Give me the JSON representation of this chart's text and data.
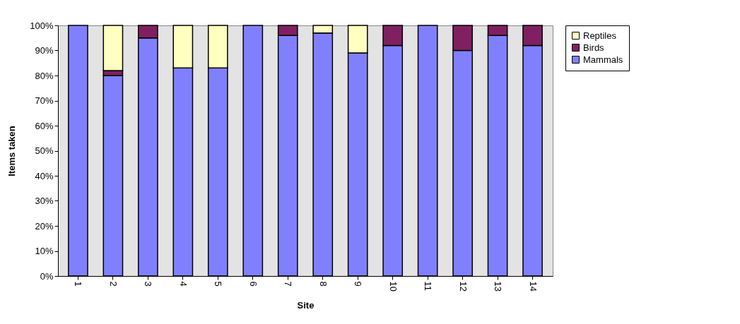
{
  "chart_data": {
    "type": "bar",
    "stacked": true,
    "xlabel": "Site",
    "ylabel": "Items taken",
    "categories": [
      "1",
      "2",
      "3",
      "4",
      "5",
      "6",
      "7",
      "8",
      "9",
      "10",
      "11",
      "12",
      "13",
      "14"
    ],
    "series": [
      {
        "name": "Mammals",
        "color": "#8080ff",
        "values": [
          100,
          80,
          95,
          83,
          83,
          100,
          96,
          97,
          89,
          92,
          100,
          90,
          96,
          92
        ]
      },
      {
        "name": "Birds",
        "color": "#802060",
        "values": [
          0,
          2,
          5,
          0,
          0,
          0,
          4,
          0,
          0,
          8,
          0,
          10,
          4,
          8
        ]
      },
      {
        "name": "Reptiles",
        "color": "#ffffc0",
        "values": [
          0,
          18,
          0,
          17,
          17,
          0,
          0,
          3,
          11,
          0,
          0,
          0,
          0,
          0
        ]
      }
    ],
    "ylim": [
      0,
      100
    ],
    "yticks": [
      {
        "value": 0,
        "label": "0%"
      },
      {
        "value": 10,
        "label": "10%"
      },
      {
        "value": 20,
        "label": "20%"
      },
      {
        "value": 30,
        "label": "30%"
      },
      {
        "value": 40,
        "label": "40%"
      },
      {
        "value": 50,
        "label": "50%"
      },
      {
        "value": 60,
        "label": "60%"
      },
      {
        "value": 70,
        "label": "70%"
      },
      {
        "value": 80,
        "label": "80%"
      },
      {
        "value": 90,
        "label": "90%"
      },
      {
        "value": 100,
        "label": "100%"
      }
    ],
    "grid": false,
    "legend": "right"
  }
}
